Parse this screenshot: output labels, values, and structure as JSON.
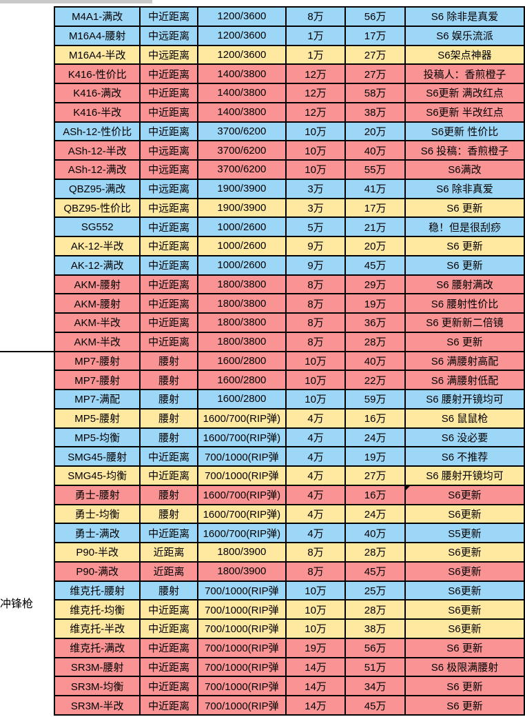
{
  "page": {
    "section_label": "冲锋枪"
  },
  "colors": {
    "row_blue": "#9dd7f8",
    "row_yellow": "#ffe8a0",
    "row_red": "#fa9393",
    "border": "#000000",
    "top_strip_grey": "#c9c9c9"
  },
  "table": {
    "rows": [
      {
        "name": "M4A1-满改",
        "range": "中近距离",
        "ammo": "1200/3600",
        "mod_price": "8万",
        "total_price": "56万",
        "comment": "S6 除非是真爱",
        "color": "blue"
      },
      {
        "name": "M16A4-腰射",
        "range": "中远距离",
        "ammo": "1200/3600",
        "mod_price": "1万",
        "total_price": "17万",
        "comment": "S6 娱乐流派",
        "color": "blue"
      },
      {
        "name": "M16A4-半改",
        "range": "中远距离",
        "ammo": "1200/3600",
        "mod_price": "1万",
        "total_price": "27万",
        "comment": "S6架点神器",
        "color": "yellow"
      },
      {
        "name": "K416-性价比",
        "range": "中近距离",
        "ammo": "1400/3800",
        "mod_price": "12万",
        "total_price": "27万",
        "comment": "投稿人：香煎橙子",
        "color": "red"
      },
      {
        "name": "K416-满改",
        "range": "中近距离",
        "ammo": "1400/3800",
        "mod_price": "12万",
        "total_price": "58万",
        "comment": "S6更新 满改红点",
        "color": "red"
      },
      {
        "name": "K416-半改",
        "range": "中近距离",
        "ammo": "1400/3800",
        "mod_price": "12万",
        "total_price": "38万",
        "comment": "S6更新 半改红点",
        "color": "red"
      },
      {
        "name": "ASh-12-性价比",
        "range": "中近距离",
        "ammo": "3700/6200",
        "mod_price": "10万",
        "total_price": "20万",
        "comment": "S6更新 性价比",
        "color": "blue"
      },
      {
        "name": "ASh-12-半改",
        "range": "中远距离",
        "ammo": "3700/6200",
        "mod_price": "10万",
        "total_price": "40万",
        "comment": "S6 投稿：香煎橙子",
        "color": "red"
      },
      {
        "name": "ASh-12-满改",
        "range": "中远距离",
        "ammo": "3700/6200",
        "mod_price": "10万",
        "total_price": "55万",
        "comment": "S6满改",
        "color": "red"
      },
      {
        "name": "QBZ95-满改",
        "range": "中远距离",
        "ammo": "1900/3900",
        "mod_price": "3万",
        "total_price": "41万",
        "comment": "S6 除非真爱",
        "color": "blue"
      },
      {
        "name": "QBZ95-性价比",
        "range": "中远距离",
        "ammo": "1900/3900",
        "mod_price": "3万",
        "total_price": "17万",
        "comment": "S6 更新",
        "color": "yellow"
      },
      {
        "name": "SG552",
        "range": "中近距离",
        "ammo": "1000/2600",
        "mod_price": "5万",
        "total_price": "21万",
        "comment": "稳！但是很刮痧",
        "color": "blue"
      },
      {
        "name": "AK-12-半改",
        "range": "中近距离",
        "ammo": "1000/2600",
        "mod_price": "9万",
        "total_price": "20万",
        "comment": "S6 更新",
        "color": "yellow"
      },
      {
        "name": "AK-12-满改",
        "range": "中近距离",
        "ammo": "1000/2600",
        "mod_price": "9万",
        "total_price": "45万",
        "comment": "S6 更新",
        "color": "blue"
      },
      {
        "name": "AKM-腰射",
        "range": "中近距离",
        "ammo": "1800/3800",
        "mod_price": "8万",
        "total_price": "29万",
        "comment": "S6 腰射满改",
        "color": "red"
      },
      {
        "name": "AKM-腰射",
        "range": "中近距离",
        "ammo": "1800/3800",
        "mod_price": "8万",
        "total_price": "19万",
        "comment": "S6 腰射性价比",
        "color": "red"
      },
      {
        "name": "AKM-半改",
        "range": "中近距离",
        "ammo": "1800/3800",
        "mod_price": "8万",
        "total_price": "36万",
        "comment": "S6 更新新二倍镜",
        "color": "red"
      },
      {
        "name": "AKM-半改",
        "range": "中近距离",
        "ammo": "1800/3800",
        "mod_price": "8万",
        "total_price": "28万",
        "comment": "S6 更新",
        "color": "red"
      },
      {
        "name": "MP7-腰射",
        "range": "腰射",
        "ammo": "1600/2800",
        "mod_price": "10万",
        "total_price": "40万",
        "comment": "S6 满腰射高配",
        "color": "red"
      },
      {
        "name": "MP7-腰射",
        "range": "腰射",
        "ammo": "1600/2800",
        "mod_price": "10万",
        "total_price": "22万",
        "comment": "S6 满腰射低配",
        "color": "red"
      },
      {
        "name": "MP7-满配",
        "range": "腰射",
        "ammo": "1600/2800",
        "mod_price": "10万",
        "total_price": "59万",
        "comment": "S6 腰射开镜均可",
        "color": "blue"
      },
      {
        "name": "MP5-腰射",
        "range": "腰射",
        "ammo": "1600/700(RIP弹)",
        "mod_price": "4万",
        "total_price": "16万",
        "comment": "S6 鼠鼠枪",
        "color": "yellow"
      },
      {
        "name": "MP5-均衡",
        "range": "腰射",
        "ammo": "1600/700(RIP弹)",
        "mod_price": "4万",
        "total_price": "24万",
        "comment": "S6 没必要",
        "color": "blue"
      },
      {
        "name": "SMG45-腰射",
        "range": "中近距离",
        "ammo": "700/1000(RIP弹",
        "mod_price": "4万",
        "total_price": "19万",
        "comment": "S6 不推荐",
        "color": "blue"
      },
      {
        "name": "SMG45-均衡",
        "range": "中近距离",
        "ammo": "700/1000(RIP弹",
        "mod_price": "4万",
        "total_price": "27万",
        "comment": "S6 腰射开镜均可",
        "color": "yellow"
      },
      {
        "name": "勇士-腰射",
        "range": "腰射",
        "ammo": "1600/700(RIP弹)",
        "mod_price": "4万",
        "total_price": "16万",
        "comment": "S6更新",
        "color": "red",
        "comment_marker": true
      },
      {
        "name": "勇士-均衡",
        "range": "腰射",
        "ammo": "1600/700(RIP弹)",
        "mod_price": "4万",
        "total_price": "24万",
        "comment": "S6更新",
        "color": "yellow"
      },
      {
        "name": "勇士-满改",
        "range": "中近距离",
        "ammo": "1600/700(RIP弹)",
        "mod_price": "4万",
        "total_price": "40万",
        "comment": "S5更新",
        "color": "blue"
      },
      {
        "name": "P90-半改",
        "range": "近距离",
        "ammo": "1800/3900",
        "mod_price": "8万",
        "total_price": "28万",
        "comment": "S6更新",
        "color": "yellow"
      },
      {
        "name": "P90-满改",
        "range": "近距离",
        "ammo": "1800/3900",
        "mod_price": "8万",
        "total_price": "45万",
        "comment": "S6更新",
        "color": "red"
      },
      {
        "name": "维克托-腰射",
        "range": "腰射",
        "ammo": "700/1000(RIP弹",
        "mod_price": "10万",
        "total_price": "25万",
        "comment": "S6更新",
        "color": "blue"
      },
      {
        "name": "维克托-均衡",
        "range": "中近距离",
        "ammo": "700/1000(RIP弹",
        "mod_price": "10万",
        "total_price": "28万",
        "comment": "S6更新",
        "color": "yellow"
      },
      {
        "name": "维克托-半改",
        "range": "中近距离",
        "ammo": "700/1000(RIP弹",
        "mod_price": "10万",
        "total_price": "38万",
        "comment": "S6更新",
        "color": "yellow"
      },
      {
        "name": "维克托-满改",
        "range": "中近距离",
        "ammo": "700/1000(RIP弹",
        "mod_price": "19万",
        "total_price": "56万",
        "comment": "S6 更新",
        "color": "red"
      },
      {
        "name": "SR3M-腰射",
        "range": "中近距离",
        "ammo": "700/1000(RIP弹",
        "mod_price": "14万",
        "total_price": "51万",
        "comment": "S6 极限满腰射",
        "color": "red"
      },
      {
        "name": "SR3M-均衡",
        "range": "中近距离",
        "ammo": "700/1000(RIP弹",
        "mod_price": "14万",
        "total_price": "34万",
        "comment": "S6 更新",
        "color": "red"
      },
      {
        "name": "SR3M-半改",
        "range": "中近距离",
        "ammo": "700/1000(RIP弹",
        "mod_price": "14万",
        "total_price": "45万",
        "comment": "S6 更新",
        "color": "red"
      }
    ]
  }
}
